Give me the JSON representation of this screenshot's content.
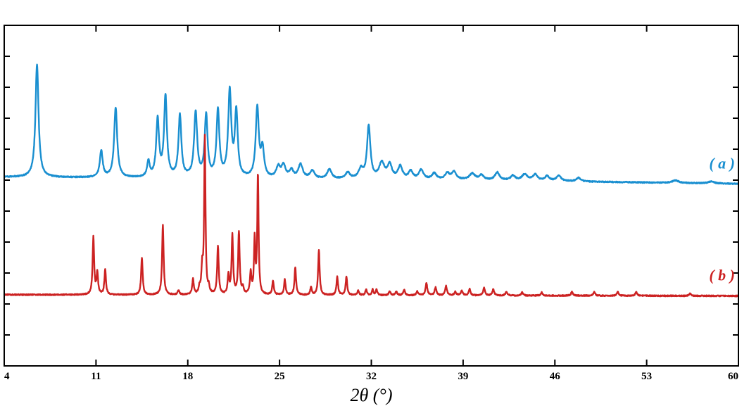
{
  "chart_data": {
    "type": "line",
    "title": "",
    "xlabel": "2θ (°)",
    "ylabel": "",
    "xlim": [
      4,
      60
    ],
    "ylim": [
      0,
      110
    ],
    "x_ticks": [
      4,
      11,
      18,
      25,
      32,
      39,
      46,
      53,
      60
    ],
    "x_tick_labels": [
      "4",
      "11",
      "18",
      "25",
      "32",
      "39",
      "46",
      "53",
      "60"
    ],
    "y_tick_count": 11,
    "grid": false,
    "legend": "inline-right",
    "series": [
      {
        "label": "( a )",
        "color": "#1a8fd0",
        "baseline": [
          [
            4,
            61
          ],
          [
            20,
            60.5
          ],
          [
            40,
            60
          ],
          [
            60,
            58.8
          ]
        ],
        "peaks": [
          [
            6.5,
            36.5,
            0.14
          ],
          [
            11.4,
            8.5,
            0.13
          ],
          [
            12.5,
            22.5,
            0.14
          ],
          [
            15.0,
            5,
            0.12
          ],
          [
            15.7,
            18.5,
            0.13
          ],
          [
            16.3,
            26,
            0.13
          ],
          [
            17.4,
            20,
            0.13
          ],
          [
            18.6,
            21,
            0.14
          ],
          [
            19.4,
            20,
            0.13
          ],
          [
            20.3,
            21.5,
            0.13
          ],
          [
            21.2,
            27.5,
            0.14
          ],
          [
            21.7,
            21,
            0.13
          ],
          [
            23.3,
            22.5,
            0.14
          ],
          [
            23.7,
            9,
            0.14
          ],
          [
            24.9,
            3.5,
            0.18
          ],
          [
            25.3,
            4,
            0.18
          ],
          [
            25.9,
            2.5,
            0.18
          ],
          [
            26.6,
            4.5,
            0.2
          ],
          [
            27.5,
            2.5,
            0.2
          ],
          [
            28.8,
            3,
            0.2
          ],
          [
            30.2,
            2,
            0.2
          ],
          [
            31.2,
            3,
            0.2
          ],
          [
            31.8,
            17,
            0.15
          ],
          [
            32.8,
            5,
            0.25
          ],
          [
            33.4,
            4.5,
            0.2
          ],
          [
            34.2,
            4,
            0.2
          ],
          [
            35.0,
            2.5,
            0.2
          ],
          [
            35.8,
            3,
            0.2
          ],
          [
            36.8,
            2,
            0.2
          ],
          [
            37.8,
            2,
            0.2
          ],
          [
            38.3,
            2.5,
            0.2
          ],
          [
            39.7,
            2,
            0.25
          ],
          [
            40.4,
            1.5,
            0.2
          ],
          [
            41.6,
            2.5,
            0.2
          ],
          [
            42.8,
            1.5,
            0.2
          ],
          [
            43.7,
            2,
            0.25
          ],
          [
            44.5,
            2,
            0.2
          ],
          [
            45.4,
            1.5,
            0.2
          ],
          [
            46.3,
            1.8,
            0.2
          ],
          [
            47.8,
            1.2,
            0.2
          ],
          [
            55.2,
            0.8,
            0.3
          ],
          [
            57.9,
            0.6,
            0.3
          ]
        ]
      },
      {
        "label": "( b )",
        "color": "#cc2222",
        "baseline": [
          [
            4,
            23
          ],
          [
            60,
            22.6
          ]
        ],
        "peaks": [
          [
            10.8,
            18.5,
            0.07
          ],
          [
            11.1,
            7,
            0.07
          ],
          [
            11.7,
            8,
            0.07
          ],
          [
            14.5,
            12,
            0.07
          ],
          [
            16.1,
            22.5,
            0.07
          ],
          [
            17.3,
            1.5,
            0.07
          ],
          [
            18.4,
            5,
            0.07
          ],
          [
            18.9,
            2,
            0.07
          ],
          [
            19.1,
            8,
            0.07
          ],
          [
            19.3,
            50.5,
            0.06
          ],
          [
            19.6,
            2,
            0.07
          ],
          [
            20.3,
            15.5,
            0.07
          ],
          [
            21.1,
            6,
            0.07
          ],
          [
            21.4,
            19,
            0.07
          ],
          [
            21.9,
            20,
            0.07
          ],
          [
            22.2,
            2,
            0.07
          ],
          [
            22.8,
            7,
            0.07
          ],
          [
            23.1,
            17.5,
            0.06
          ],
          [
            23.35,
            38.5,
            0.06
          ],
          [
            24.5,
            4.5,
            0.07
          ],
          [
            25.4,
            5,
            0.07
          ],
          [
            26.2,
            9,
            0.07
          ],
          [
            27.4,
            2.5,
            0.07
          ],
          [
            28.0,
            14.5,
            0.07
          ],
          [
            29.4,
            6,
            0.07
          ],
          [
            30.1,
            6,
            0.07
          ],
          [
            31.0,
            1.5,
            0.07
          ],
          [
            31.6,
            1.8,
            0.07
          ],
          [
            32.1,
            1.8,
            0.07
          ],
          [
            32.4,
            1.8,
            0.07
          ],
          [
            33.4,
            1.2,
            0.08
          ],
          [
            33.9,
            1.2,
            0.08
          ],
          [
            34.5,
            1.8,
            0.08
          ],
          [
            35.5,
            1.2,
            0.08
          ],
          [
            36.2,
            4,
            0.08
          ],
          [
            36.9,
            2.5,
            0.08
          ],
          [
            37.7,
            3,
            0.08
          ],
          [
            38.4,
            1.2,
            0.08
          ],
          [
            38.9,
            1.5,
            0.08
          ],
          [
            39.5,
            2,
            0.08
          ],
          [
            40.6,
            2.5,
            0.08
          ],
          [
            41.3,
            2,
            0.08
          ],
          [
            42.3,
            1.2,
            0.08
          ],
          [
            43.5,
            1,
            0.08
          ],
          [
            45.0,
            1,
            0.08
          ],
          [
            47.3,
            1.2,
            0.08
          ],
          [
            49.0,
            1.2,
            0.08
          ],
          [
            50.8,
            1.2,
            0.08
          ],
          [
            52.2,
            1.2,
            0.08
          ],
          [
            56.3,
            0.8,
            0.08
          ]
        ]
      }
    ]
  }
}
